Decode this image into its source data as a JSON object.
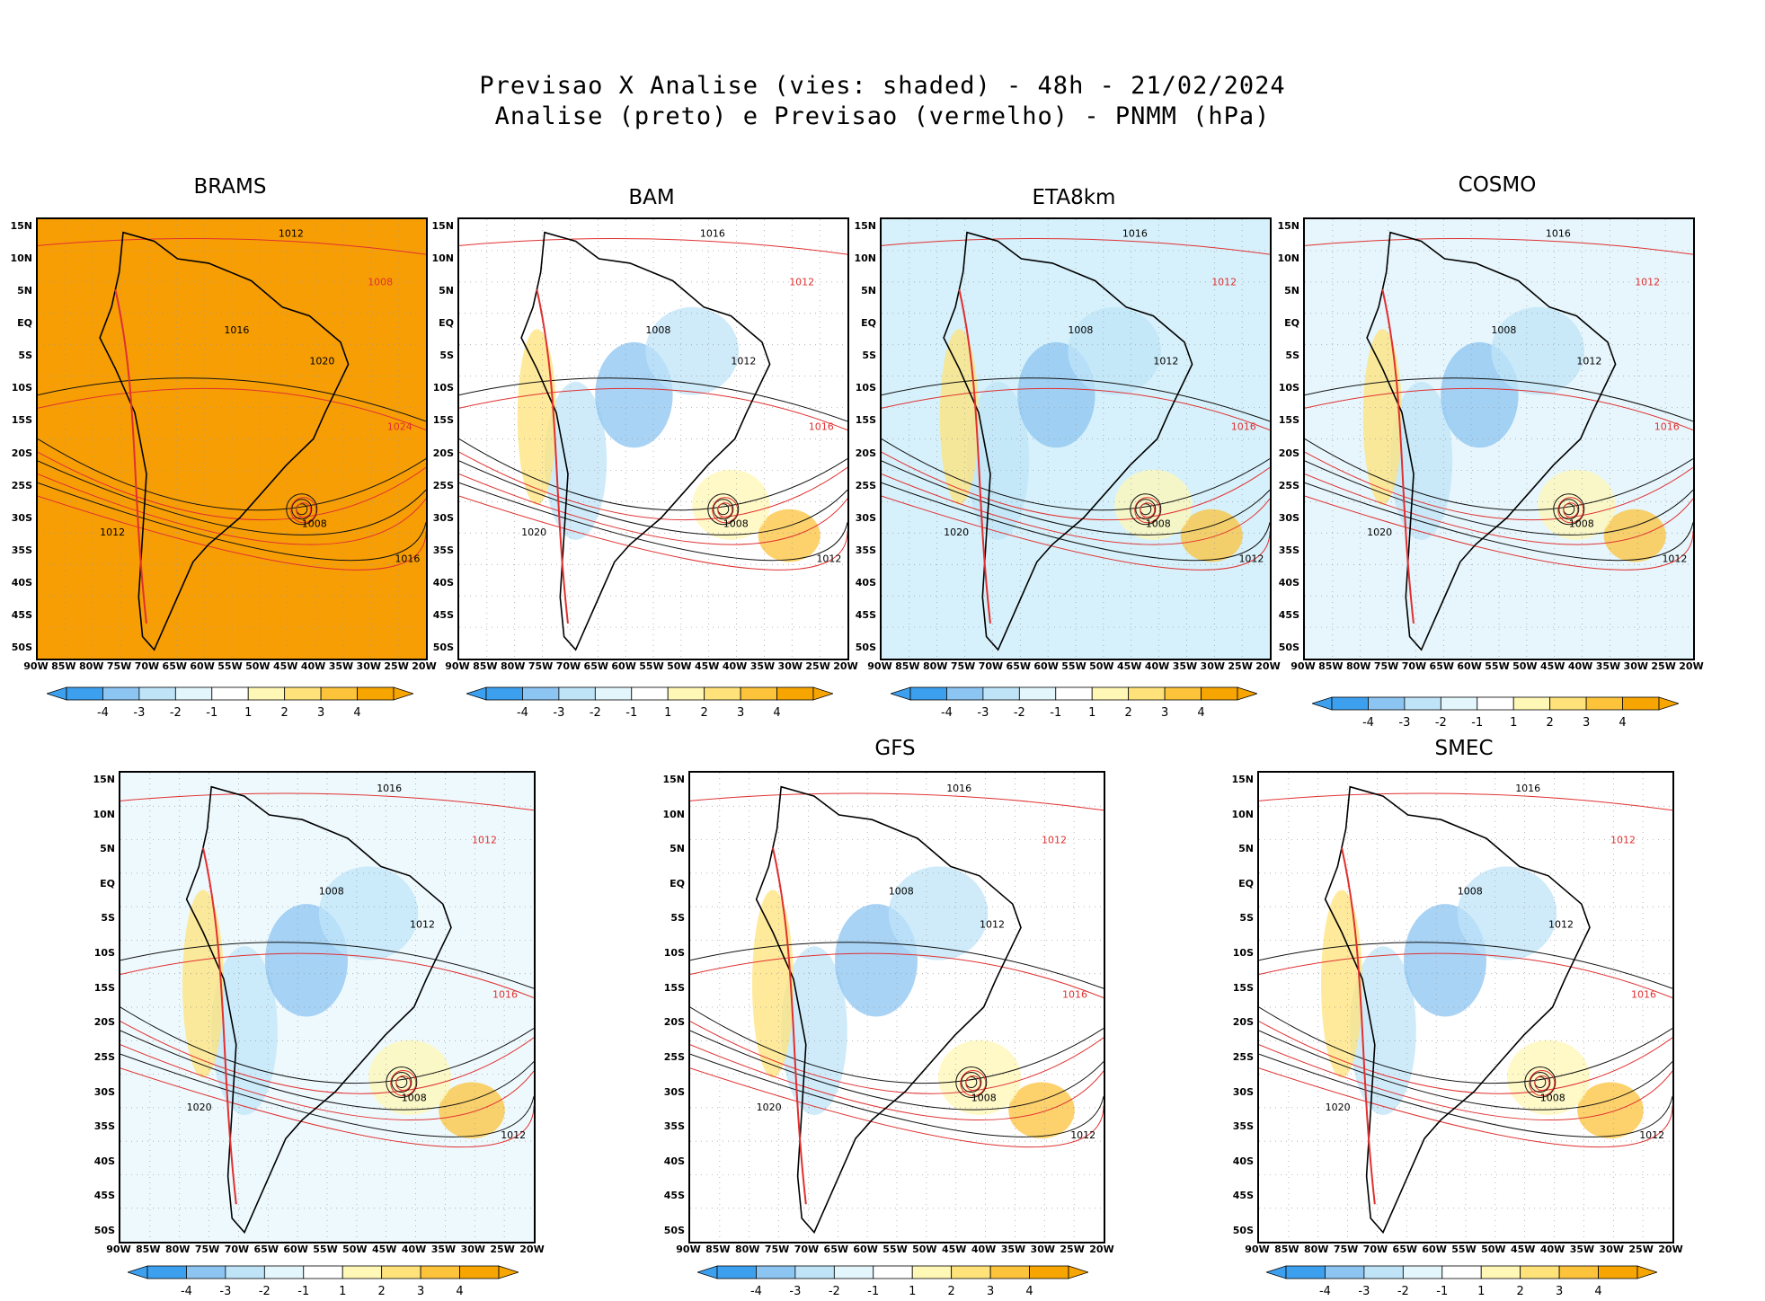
{
  "header": {
    "line1": "Previsao X Analise (vies: shaded) - 48h - 21/02/2024",
    "line2": "Analise (preto) e Previsao (vermelho) - PNMM (hPa)"
  },
  "lat_labels": [
    "15N",
    "10N",
    "5N",
    "EQ",
    "5S",
    "10S",
    "15S",
    "20S",
    "25S",
    "30S",
    "35S",
    "40S",
    "45S",
    "50S"
  ],
  "lon_labels": [
    "90W",
    "85W",
    "80W",
    "75W",
    "70W",
    "65W",
    "60W",
    "55W",
    "50W",
    "45W",
    "40W",
    "35W",
    "30W",
    "25W",
    "20W"
  ],
  "colorbar": {
    "ticks": [
      "-4",
      "-3",
      "-2",
      "-1",
      "1",
      "2",
      "3",
      "4"
    ],
    "colors": [
      "#3da0ef",
      "#8cc4f2",
      "#bfe4f8",
      "#e3f6fc",
      "#ffffff",
      "#fff7b5",
      "#ffe37a",
      "#fcc33b",
      "#f7a500"
    ]
  },
  "panels": [
    {
      "title": "BRAMS",
      "fill": "#f79e05",
      "labels": [
        "1012",
        "1008",
        "1016",
        "1020",
        "1024",
        "1008",
        "1012",
        "1016"
      ]
    },
    {
      "title": "BAM",
      "fill": "#ffffff",
      "labels": [
        "1016",
        "1012",
        "1008",
        "1012",
        "1016",
        "1008",
        "1020",
        "1012"
      ]
    },
    {
      "title": "ETA8km",
      "fill": "#d6f1fb",
      "labels": [
        "1016",
        "1012",
        "1008",
        "1012",
        "1016",
        "1008",
        "1020",
        "1012"
      ]
    },
    {
      "title": "COSMO",
      "fill": "#e6f6fc",
      "labels": [
        "1016",
        "1012",
        "1008",
        "1012",
        "1016",
        "1008",
        "1020",
        "1012"
      ]
    },
    {
      "title": "",
      "fill": "#eef9fd",
      "labels": [
        "1016",
        "1012",
        "1008",
        "1012",
        "1016",
        "1008",
        "1020",
        "1012"
      ]
    },
    {
      "title": "GFS",
      "fill": "#ffffff",
      "labels": [
        "1016",
        "1012",
        "1008",
        "1012",
        "1016",
        "1008",
        "1020",
        "1012"
      ]
    },
    {
      "title": "SMEC",
      "fill": "#ffffff",
      "labels": [
        "1016",
        "1012",
        "1008",
        "1012",
        "1016",
        "1008",
        "1020",
        "1012"
      ]
    }
  ]
}
